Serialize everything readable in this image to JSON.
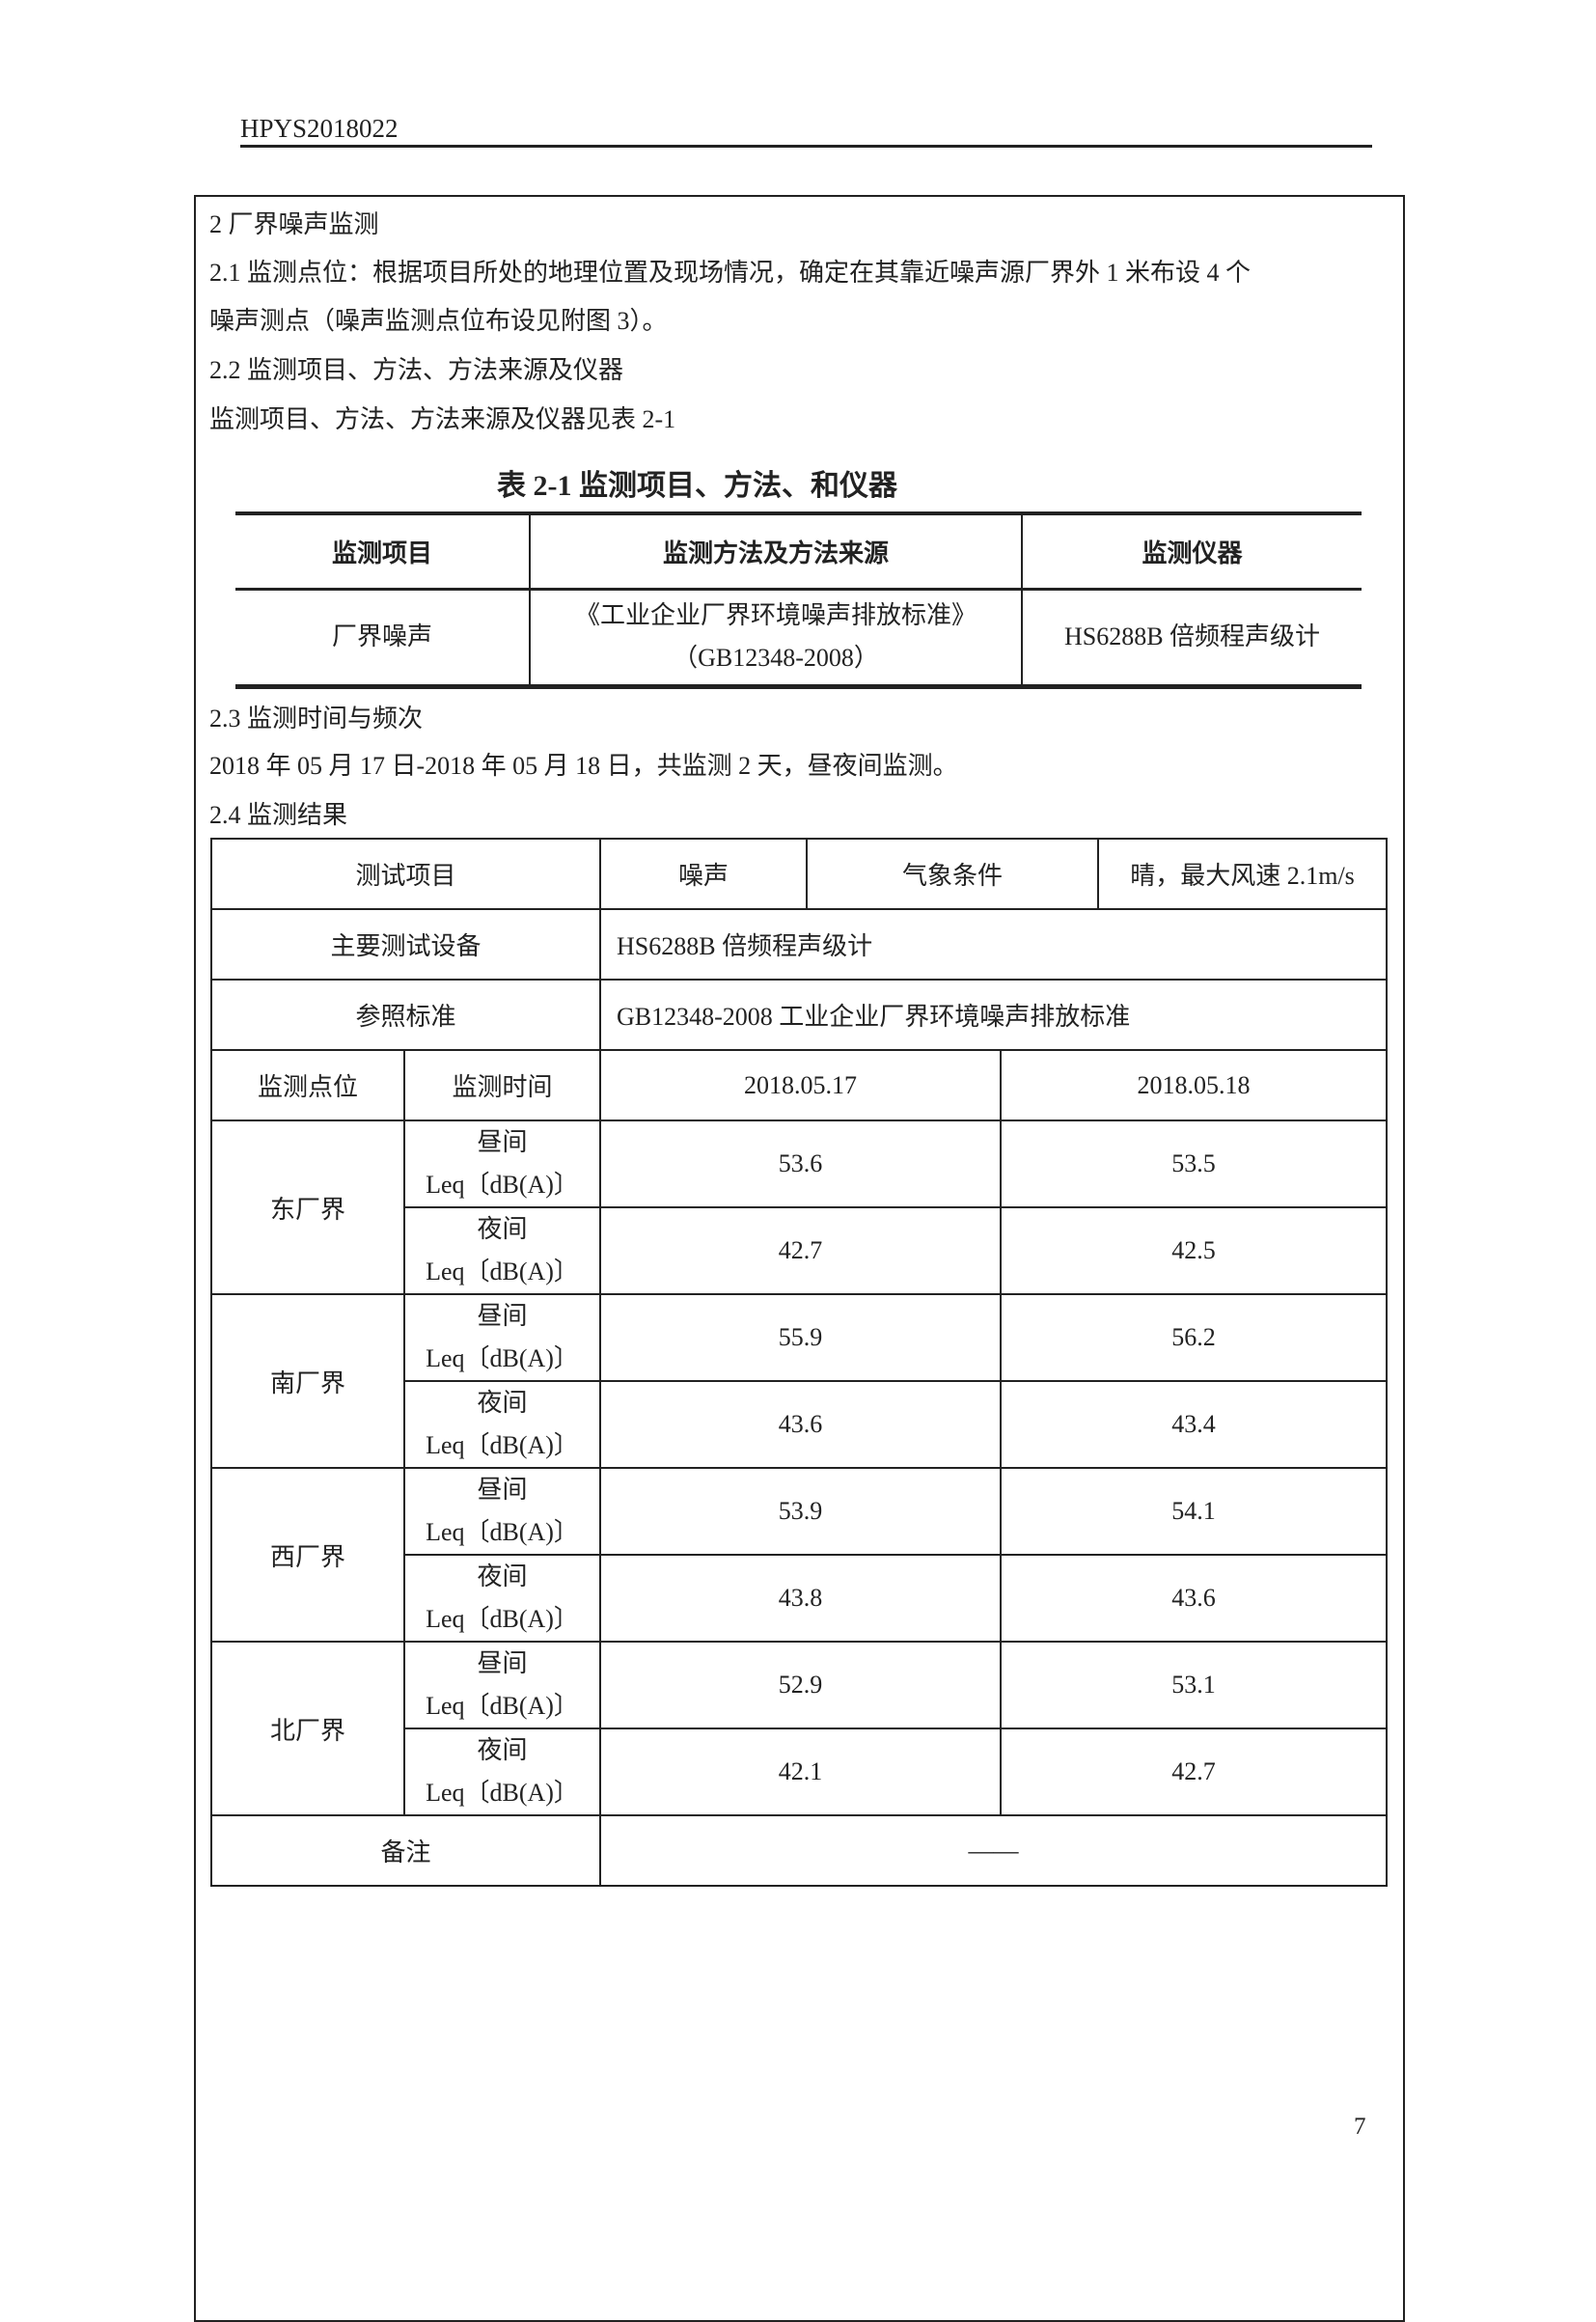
{
  "header": {
    "doc_code": "HPYS2018022"
  },
  "paragraphs": {
    "s2": "2 厂界噪声监测",
    "s21_a": "2.1 监测点位：根据项目所处的地理位置及现场情况，确定在其靠近噪声源厂界外 1 米布设 4 个",
    "s21_b": "噪声测点（噪声监测点位布设见附图 3）。",
    "s22": "2.2 监测项目、方法、方法来源及仪器",
    "s22_note": "监测项目、方法、方法来源及仪器见表 2-1",
    "s23": "2.3 监测时间与频次",
    "s23_text": "2018 年 05 月 17 日-2018 年 05 月 18 日，共监测 2 天，昼夜间监测。",
    "s24": "2.4 监测结果"
  },
  "table21": {
    "title": "表 2-1 监测项目、方法、和仪器",
    "headers": [
      "监测项目",
      "监测方法及方法来源",
      "监测仪器"
    ],
    "row": {
      "item": "厂界噪声",
      "method_line1": "《工业企业厂界环境噪声排放标准》",
      "method_line2": "（GB12348-2008）",
      "instrument": "HS6288B 倍频程声级计"
    }
  },
  "results": {
    "test_item_label": "测试项目",
    "test_item": "噪声",
    "weather_label": "气象条件",
    "weather": "晴，最大风速 2.1m/s",
    "equipment_label": "主要测试设备",
    "equipment": "HS6288B 倍频程声级计",
    "standard_label": "参照标准",
    "standard": "GB12348-2008  工业企业厂界环境噪声排放标准",
    "col_point": "监测点位",
    "col_time": "监测时间",
    "dates": [
      "2018.05.17",
      "2018.05.18"
    ],
    "unit": "Leq〔dB(A)〕",
    "day_label": "昼间",
    "night_label": "夜间",
    "points": [
      {
        "name": "东厂界",
        "day": [
          "53.6",
          "53.5"
        ],
        "night": [
          "42.7",
          "42.5"
        ]
      },
      {
        "name": "南厂界",
        "day": [
          "55.9",
          "56.2"
        ],
        "night": [
          "43.6",
          "43.4"
        ]
      },
      {
        "name": "西厂界",
        "day": [
          "53.9",
          "54.1"
        ],
        "night": [
          "43.8",
          "43.6"
        ]
      },
      {
        "name": "北厂界",
        "day": [
          "52.9",
          "53.1"
        ],
        "night": [
          "42.1",
          "42.7"
        ]
      }
    ],
    "remark_label": "备注",
    "remark": "——"
  },
  "page_number": "7"
}
